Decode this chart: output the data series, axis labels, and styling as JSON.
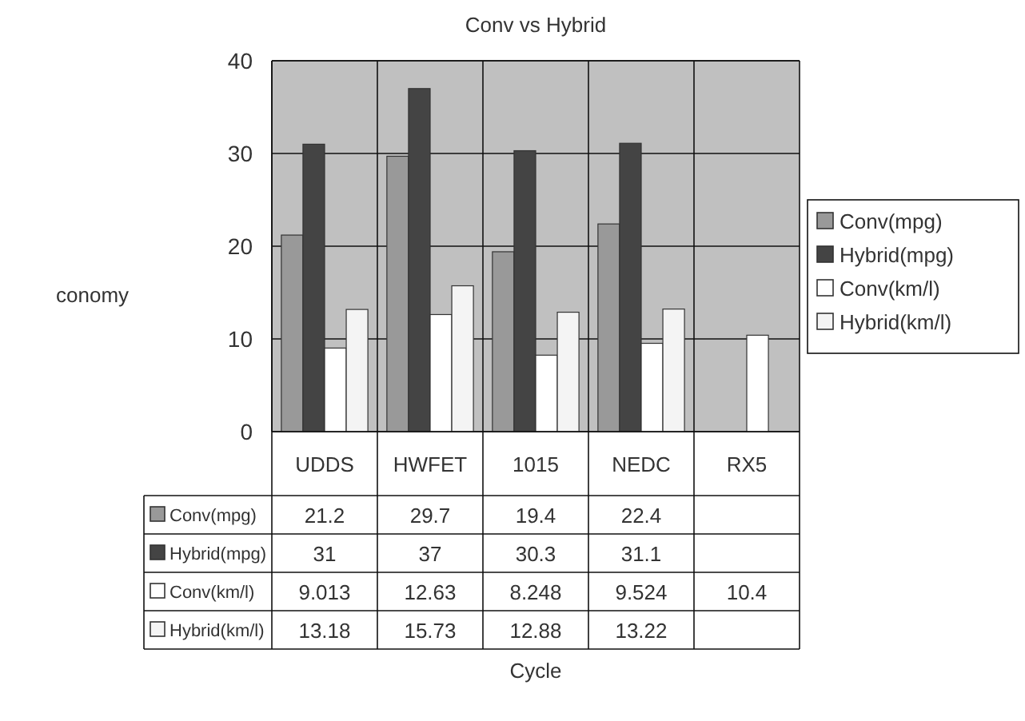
{
  "chart_data": {
    "type": "bar",
    "title": "Conv vs Hybrid",
    "annotations": [
      "Cycle"
    ],
    "ylabel": "conomy",
    "categories": [
      "UDDS",
      "HWFET",
      "1015",
      "NEDC",
      "RX5"
    ],
    "series": [
      {
        "name": "Conv(mpg)",
        "color": "#999999",
        "values": [
          21.2,
          29.7,
          19.4,
          22.4,
          null
        ]
      },
      {
        "name": "Hybrid(mpg)",
        "color": "#444444",
        "values": [
          31,
          37,
          30.3,
          31.1,
          null
        ]
      },
      {
        "name": "Conv(km/l)",
        "color": "#ffffff",
        "values": [
          9.013,
          12.63,
          8.248,
          9.524,
          10.4
        ]
      },
      {
        "name": "Hybrid(km/l)",
        "color": "#f4f4f4",
        "values": [
          13.18,
          15.73,
          12.88,
          13.22,
          null
        ]
      }
    ],
    "ylim": [
      0,
      40
    ],
    "yticks": [
      0,
      10,
      20,
      30,
      40
    ],
    "grid": "y",
    "legend": "right",
    "data_labels": true
  }
}
